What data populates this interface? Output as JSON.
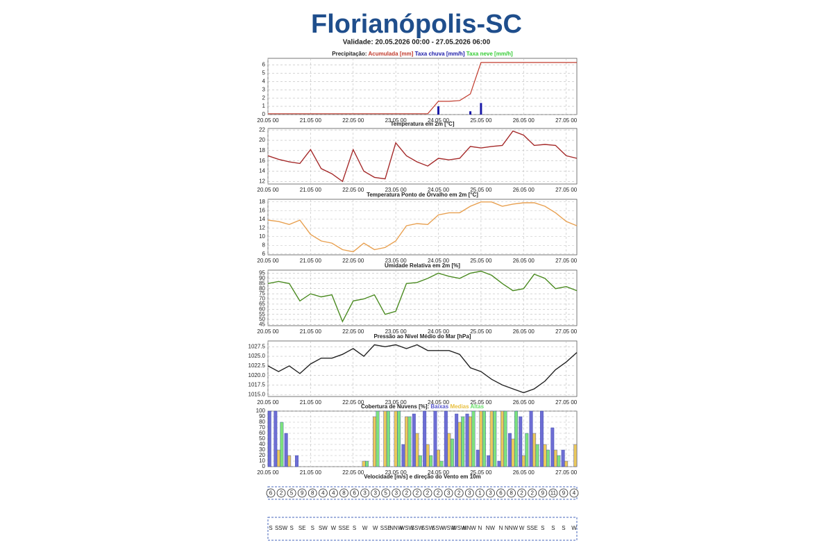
{
  "header": {
    "title": "Florianópolis-SC",
    "validity": "Validade: 20.05.2026 00:00 - 27.05.2026 06:00"
  },
  "chart_data": [
    {
      "type": "combo",
      "title": "Precipitação:",
      "categories": [
        "20.05 00",
        null,
        null,
        null,
        "21.05 00",
        null,
        null,
        null,
        "22.05 00",
        null,
        null,
        null,
        "23.05 00",
        null,
        null,
        null,
        "24.05 00",
        null,
        null,
        null,
        "25.05 00",
        null,
        null,
        null,
        "26.05 00",
        null,
        null,
        null,
        "27.05 00",
        null
      ],
      "ylim": [
        0,
        6.8
      ],
      "yticks": [
        0,
        1,
        2,
        3,
        4,
        5,
        6
      ],
      "grid": true,
      "series": [
        {
          "name": "Acumulada [mm]",
          "color": "#c0392b",
          "kind": "line",
          "values": [
            0.1,
            0.1,
            0.1,
            0.1,
            0.1,
            0.1,
            0.1,
            0.1,
            0.1,
            0.1,
            0.1,
            0.1,
            0.1,
            0.1,
            0.1,
            0.1,
            1.6,
            1.6,
            1.7,
            2.5,
            6.3,
            6.3,
            6.3,
            6.3,
            6.3,
            6.3,
            6.3,
            6.3,
            6.3,
            6.3
          ]
        },
        {
          "name": "Taxa chuva [mm/h]",
          "color": "#1a1aa8",
          "kind": "bar",
          "values": [
            0,
            0,
            0,
            0,
            0,
            0,
            0,
            0,
            0,
            0,
            0,
            0,
            0,
            0,
            0,
            0,
            1.0,
            0,
            0,
            0.4,
            1.4,
            0,
            0,
            0,
            0,
            0,
            0,
            0,
            0,
            0
          ]
        },
        {
          "name": "Taxa neve [mm/h]",
          "color": "#33cc33",
          "kind": "bar",
          "values": [
            0,
            0,
            0,
            0,
            0,
            0,
            0,
            0,
            0,
            0,
            0,
            0,
            0,
            0,
            0,
            0,
            0,
            0,
            0,
            0,
            0,
            0,
            0,
            0,
            0,
            0,
            0,
            0,
            0,
            0
          ]
        }
      ]
    },
    {
      "type": "line",
      "title": "Temperatura em 2m [°C]",
      "color": "#a52a2a",
      "categories": [
        "20.05 00",
        null,
        null,
        null,
        "21.05 00",
        null,
        null,
        null,
        "22.05 00",
        null,
        null,
        null,
        "23.05 00",
        null,
        null,
        null,
        "24.05 00",
        null,
        null,
        null,
        "25.05 00",
        null,
        null,
        null,
        "26.05 00",
        null,
        null,
        null,
        "27.05 00",
        null
      ],
      "ylim": [
        11.5,
        22.3
      ],
      "yticks": [
        12,
        14,
        16,
        18,
        20,
        22
      ],
      "grid": true,
      "values": [
        17,
        16.3,
        15.8,
        15.5,
        18.2,
        14.5,
        13.5,
        12,
        18.2,
        14,
        12.8,
        12.5,
        19.5,
        17,
        15.8,
        15,
        16.5,
        16.2,
        16.5,
        18.8,
        18.5,
        18.8,
        19,
        21.8,
        21,
        19,
        19.2,
        19,
        17,
        16.5
      ]
    },
    {
      "type": "line",
      "title": "Temperatura Ponto de Orvalho em 2m [°C]",
      "color": "#e8a050",
      "categories": [
        "20.05 00",
        null,
        null,
        null,
        "21.05 00",
        null,
        null,
        null,
        "22.05 00",
        null,
        null,
        null,
        "23.05 00",
        null,
        null,
        null,
        "24.05 00",
        null,
        null,
        null,
        "25.05 00",
        null,
        null,
        null,
        "26.05 00",
        null,
        null,
        null,
        "27.05 00",
        null
      ],
      "ylim": [
        5.8,
        18.6
      ],
      "yticks": [
        6,
        8,
        10,
        12,
        14,
        16,
        18
      ],
      "grid": true,
      "values": [
        13.8,
        13.5,
        12.8,
        13.8,
        10.5,
        9,
        8.5,
        7,
        6.5,
        8.5,
        7,
        7.5,
        9,
        12.5,
        13,
        12.8,
        15,
        15.5,
        15.5,
        17,
        18,
        18,
        17,
        17.5,
        17.8,
        17.8,
        17,
        15.5,
        13.5,
        12.5
      ]
    },
    {
      "type": "line",
      "title": "Umidade Relativa em 2m [%]",
      "color": "#4a8a20",
      "categories": [
        "20.05 00",
        null,
        null,
        null,
        "21.05 00",
        null,
        null,
        null,
        "22.05 00",
        null,
        null,
        null,
        "23.05 00",
        null,
        null,
        null,
        "24.05 00",
        null,
        null,
        null,
        "25.05 00",
        null,
        null,
        null,
        "26.05 00",
        null,
        null,
        null,
        "27.05 00",
        null
      ],
      "ylim": [
        44,
        98
      ],
      "yticks": [
        45,
        50,
        55,
        60,
        65,
        70,
        75,
        80,
        85,
        90,
        95
      ],
      "grid": true,
      "values": [
        85,
        87,
        85,
        68,
        75,
        72,
        74,
        48,
        68,
        70,
        74,
        55,
        58,
        85,
        86,
        90,
        95,
        92,
        90,
        95,
        97,
        93,
        85,
        78,
        80,
        94,
        90,
        80,
        82,
        78
      ]
    },
    {
      "type": "line",
      "title": "Pressão ao Nível Médio do Mar [hPa]",
      "color": "#222222",
      "categories": [
        "20.05 00",
        null,
        null,
        null,
        "21.05 00",
        null,
        null,
        null,
        "22.05 00",
        null,
        null,
        null,
        "23.05 00",
        null,
        null,
        null,
        "24.05 00",
        null,
        null,
        null,
        "25.05 00",
        null,
        null,
        null,
        "26.05 00",
        null,
        null,
        null,
        "27.05 00",
        null
      ],
      "ylim": [
        1014.5,
        1029
      ],
      "yticks": [
        {
          "value": 1015,
          "label": "1015.0"
        },
        {
          "value": 1017.5,
          "label": "1017.5"
        },
        {
          "value": 1020,
          "label": "1020.0"
        },
        {
          "value": 1022.5,
          "label": "1022.5"
        },
        {
          "value": 1025,
          "label": "1025.0"
        },
        {
          "value": 1027.5,
          "label": "1027.5"
        }
      ],
      "grid": true,
      "values": [
        1022.5,
        1021,
        1022.5,
        1020.5,
        1023,
        1024.5,
        1024.5,
        1025.5,
        1027,
        1025,
        1028,
        1027.5,
        1028,
        1027,
        1028,
        1026.5,
        1026.5,
        1026.5,
        1025.5,
        1022,
        1021,
        1019,
        1017.5,
        1016.5,
        1015.5,
        1016.5,
        1018.5,
        1021.5,
        1023.5,
        1026
      ]
    },
    {
      "type": "bar",
      "title": "Cobertura de Nuvens [%]:",
      "categories": [
        "20.05 00",
        null,
        null,
        null,
        "21.05 00",
        null,
        null,
        null,
        "22.05 00",
        null,
        null,
        null,
        "23.05 00",
        null,
        null,
        null,
        "24.05 00",
        null,
        null,
        null,
        "25.05 00",
        null,
        null,
        null,
        "26.05 00",
        null,
        null,
        null,
        "27.05 00",
        null
      ],
      "ylim": [
        0,
        100
      ],
      "yticks": [
        0,
        10,
        20,
        30,
        40,
        50,
        60,
        70,
        80,
        90,
        100
      ],
      "grid": true,
      "series": [
        {
          "name": "Baixas",
          "color": "#5555cc",
          "values": [
            100,
            100,
            60,
            20,
            0,
            0,
            0,
            0,
            0,
            0,
            0,
            0,
            0,
            40,
            95,
            100,
            100,
            100,
            95,
            95,
            30,
            20,
            10,
            60,
            90,
            100,
            100,
            70,
            30,
            0
          ]
        },
        {
          "name": "Medias",
          "color": "#e8c040",
          "values": [
            0,
            30,
            20,
            0,
            0,
            0,
            0,
            0,
            0,
            10,
            90,
            100,
            100,
            90,
            60,
            40,
            30,
            60,
            80,
            90,
            100,
            100,
            100,
            50,
            20,
            60,
            40,
            30,
            10,
            40
          ]
        },
        {
          "name": "Altas",
          "color": "#66dd66",
          "values": [
            0,
            80,
            0,
            0,
            0,
            0,
            0,
            0,
            0,
            10,
            100,
            100,
            100,
            90,
            20,
            20,
            10,
            50,
            90,
            100,
            100,
            100,
            100,
            100,
            60,
            40,
            30,
            20,
            0,
            0
          ]
        }
      ]
    },
    {
      "type": "wind",
      "title": "Velocidade [m/s] e direção do Vento em 10m",
      "values": [
        6,
        2,
        5,
        9,
        8,
        4,
        4,
        8,
        6,
        3,
        3,
        5,
        3,
        2,
        2,
        2,
        2,
        3,
        2,
        3,
        1,
        3,
        6,
        8,
        2,
        2,
        9,
        11,
        9,
        4
      ],
      "directions": [
        "S",
        "SSW",
        "S",
        "SE",
        "S",
        "SW",
        "W",
        "SSE",
        "S",
        "W",
        "W",
        "SSE",
        "NNW",
        "WSW",
        "SSW",
        "SSW",
        "SSW",
        "WSW",
        "WSW",
        "NNW",
        "N",
        "NW",
        "N",
        "NNW",
        "W",
        "SSE",
        "S",
        "S",
        "S",
        "W"
      ]
    }
  ]
}
